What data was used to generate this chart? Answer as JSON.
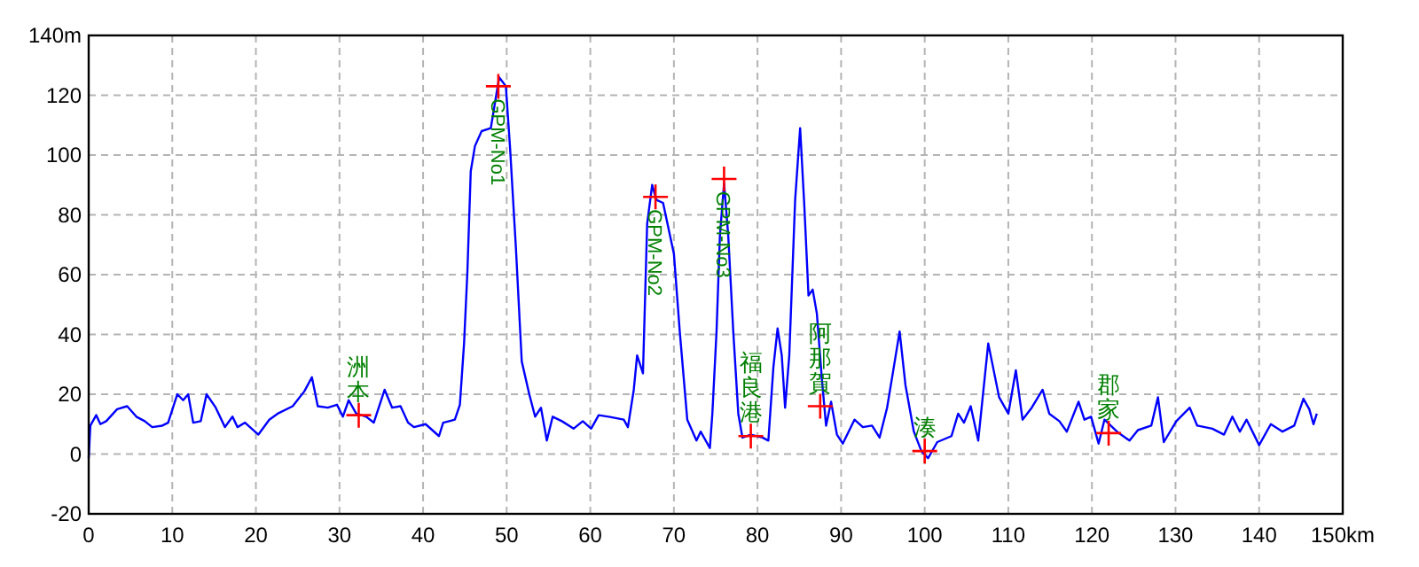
{
  "chart_data": {
    "type": "line",
    "xlim": [
      0,
      150
    ],
    "ylim": [
      -20,
      140
    ],
    "xticks": [
      0,
      10,
      20,
      30,
      40,
      50,
      60,
      70,
      80,
      90,
      100,
      110,
      120,
      130,
      140,
      {
        "value": 150,
        "label": "150km"
      }
    ],
    "yticks": [
      -20,
      0,
      20,
      40,
      60,
      80,
      100,
      120,
      {
        "value": 140,
        "label": "140m"
      }
    ],
    "grid": true,
    "series": [
      {
        "color": "#0000ff",
        "marker": "none",
        "line_style": "solid",
        "x": [
          0,
          0.2,
          0.9,
          1.4,
          2.1,
          3.4,
          4.6,
          5.7,
          6.7,
          7.6,
          8.8,
          9.5,
          10.6,
          11.3,
          11.9,
          12.5,
          13.4,
          14.1,
          15.2,
          16.3,
          17.2,
          17.8,
          18.7,
          20.3,
          21.6,
          22.6,
          24.4,
          25.8,
          26.7,
          27.4,
          28.6,
          29.7,
          30.4,
          31.1,
          32.0,
          33.2,
          34.1,
          35.4,
          36.3,
          37.3,
          38.2,
          38.9,
          40.3,
          41.9,
          42.4,
          43.8,
          44.4,
          44.9,
          45.3,
          45.7,
          46.2,
          47.0,
          48.1,
          49.1,
          49.9,
          50.4,
          51.1,
          51.8,
          52.7,
          53.4,
          54.1,
          54.8,
          55.5,
          56.6,
          58.0,
          59.1,
          60.1,
          61.0,
          62.2,
          64.0,
          64.5,
          65.2,
          65.6,
          66.3,
          66.8,
          67.4,
          67.9,
          68.7,
          70.0,
          70.7,
          71.6,
          72.7,
          73.2,
          74.3,
          74.6,
          75.1,
          75.5,
          76.0,
          76.5,
          77.1,
          77.7,
          78.2,
          79.2,
          80.6,
          81.3,
          81.9,
          82.4,
          82.9,
          83.3,
          83.8,
          84.5,
          85.1,
          85.6,
          86.1,
          86.6,
          87.1,
          87.7,
          88.2,
          88.8,
          89.5,
          90.2,
          91.6,
          92.6,
          93.7,
          94.6,
          95.5,
          96.3,
          97.0,
          97.7,
          98.7,
          99.6,
          100.4,
          101.5,
          103.2,
          104.0,
          104.7,
          105.5,
          106.4,
          107.6,
          108.9,
          110.0,
          110.9,
          111.7,
          112.8,
          114.1,
          114.9,
          116.1,
          117.0,
          118.4,
          119.1,
          119.9,
          120.8,
          121.5,
          123.0,
          124.5,
          125.5,
          127.1,
          127.9,
          128.6,
          130.1,
          131.7,
          132.6,
          134.4,
          135.8,
          136.8,
          137.7,
          138.5,
          140.0,
          141.4,
          142.8,
          144.2,
          145.3,
          146.0,
          146.5,
          146.9
        ],
        "values": [
          -1.4,
          9.5,
          13,
          10,
          11,
          15,
          16,
          12.5,
          11,
          9,
          9.5,
          10.5,
          20,
          18,
          20,
          10.5,
          11,
          20,
          15.5,
          9,
          12.5,
          9,
          10.5,
          6.5,
          11.5,
          13.5,
          16,
          21,
          25.7,
          16,
          15.5,
          16.5,
          12.5,
          18,
          13.5,
          12.5,
          10.5,
          21.5,
          15.5,
          16,
          10.5,
          9,
          10,
          6,
          10.5,
          11.5,
          16.5,
          37,
          61,
          94.6,
          103,
          108,
          109,
          126,
          123,
          102.5,
          69,
          31,
          20,
          12.5,
          15.5,
          4.5,
          12.5,
          11,
          8.5,
          11,
          8.5,
          13,
          12.5,
          11.5,
          9,
          21.5,
          33,
          27,
          77,
          90,
          85,
          84,
          67,
          41,
          11.5,
          4.5,
          7.5,
          2,
          13.5,
          41,
          73,
          90.6,
          73,
          41,
          13.5,
          5.5,
          6.5,
          5.5,
          4.5,
          29,
          42,
          33,
          15.5,
          33,
          85,
          109,
          83,
          53,
          55,
          47,
          25,
          9.5,
          17.5,
          6.5,
          3.5,
          11.5,
          9,
          9.5,
          5.5,
          15.5,
          29,
          41,
          23,
          7.5,
          1,
          -1.4,
          4,
          6,
          13.5,
          10.5,
          16,
          4.5,
          37,
          19,
          13.5,
          28,
          11.5,
          15.5,
          21.5,
          13.5,
          11,
          7.5,
          17.5,
          11.5,
          12.5,
          3.5,
          11.5,
          7.5,
          4.5,
          8,
          9.5,
          19,
          4,
          11,
          15.5,
          9.5,
          8.5,
          6.5,
          12.5,
          7.5,
          11.5,
          3,
          10,
          7.5,
          9.5,
          18.5,
          15,
          10,
          13.5
        ]
      },
      {
        "type": "scatter",
        "color": "#ff0000",
        "marker": "cross",
        "x": [
          32.3,
          49.0,
          67.8,
          76.0,
          79.2,
          87.5,
          100.0,
          122.0
        ],
        "values": [
          13,
          123,
          86,
          92,
          6,
          16,
          1,
          7
        ]
      }
    ],
    "annotations": [
      {
        "text": "洲本",
        "x": 32.3,
        "y": 13
      },
      {
        "text": "GPM-No1",
        "x": 49.0,
        "y": 123
      },
      {
        "text": "GPM-No2",
        "x": 67.8,
        "y": 86
      },
      {
        "text": "GPM-No3",
        "x": 76.0,
        "y": 92
      },
      {
        "text": "福良港",
        "x": 79.2,
        "y": 6
      },
      {
        "text": "阿那賀",
        "x": 87.5,
        "y": 16
      },
      {
        "text": "湊",
        "x": 100.0,
        "y": 1
      },
      {
        "text": "郡家",
        "x": 122.0,
        "y": 7
      }
    ]
  }
}
